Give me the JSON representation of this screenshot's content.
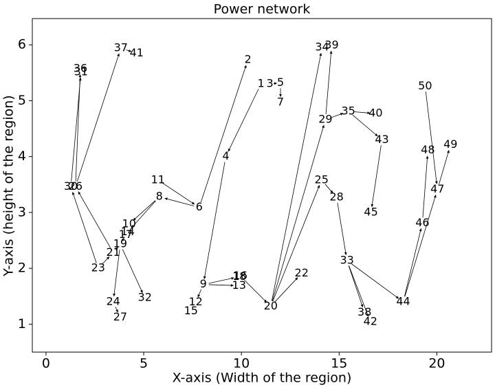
{
  "chart_data": {
    "type": "network",
    "title": "Power network",
    "x_label": "X-axis (Width of the region)",
    "y_label": "Y-axis (height of the region)",
    "xlim": [
      -0.7,
      22.8
    ],
    "ylim": [
      0.5,
      6.47
    ],
    "xticks": [
      0,
      5,
      10,
      15,
      20
    ],
    "yticks": [
      1,
      2,
      3,
      4,
      5,
      6
    ],
    "nodes": [
      {
        "label": "1",
        "x": 11.0,
        "y": 5.3
      },
      {
        "label": "2",
        "x": 10.33,
        "y": 5.73
      },
      {
        "label": "3",
        "x": 11.46,
        "y": 5.3
      },
      {
        "label": "4",
        "x": 9.2,
        "y": 4.0
      },
      {
        "label": "5",
        "x": 12.0,
        "y": 5.32
      },
      {
        "label": "6",
        "x": 7.84,
        "y": 3.09
      },
      {
        "label": "7",
        "x": 12.0,
        "y": 4.97
      },
      {
        "label": "8",
        "x": 5.8,
        "y": 3.28
      },
      {
        "label": "9",
        "x": 8.05,
        "y": 1.71
      },
      {
        "label": "10",
        "x": 4.25,
        "y": 2.79
      },
      {
        "label": "11",
        "x": 5.73,
        "y": 3.58
      },
      {
        "label": "12",
        "x": 7.66,
        "y": 1.39
      },
      {
        "label": "13",
        "x": 9.88,
        "y": 1.69
      },
      {
        "label": "14",
        "x": 4.18,
        "y": 2.65
      },
      {
        "label": "15",
        "x": 7.42,
        "y": 1.23
      },
      {
        "label": "16",
        "x": 9.95,
        "y": 1.86
      },
      {
        "label": "17",
        "x": 4.08,
        "y": 2.6
      },
      {
        "label": "18",
        "x": 9.9,
        "y": 1.85
      },
      {
        "label": "19",
        "x": 3.8,
        "y": 2.43
      },
      {
        "label": "20",
        "x": 11.5,
        "y": 1.32
      },
      {
        "label": "21",
        "x": 3.44,
        "y": 2.28
      },
      {
        "label": "22",
        "x": 13.08,
        "y": 1.91
      },
      {
        "label": "23",
        "x": 2.67,
        "y": 2.0
      },
      {
        "label": "24",
        "x": 3.44,
        "y": 1.4
      },
      {
        "label": "25",
        "x": 14.1,
        "y": 3.58
      },
      {
        "label": "26",
        "x": 1.51,
        "y": 3.46
      },
      {
        "label": "27",
        "x": 3.8,
        "y": 1.12
      },
      {
        "label": "28",
        "x": 14.87,
        "y": 3.27
      },
      {
        "label": "29",
        "x": 14.3,
        "y": 4.66
      },
      {
        "label": "30",
        "x": 1.27,
        "y": 3.46
      },
      {
        "label": "31",
        "x": 1.79,
        "y": 5.51
      },
      {
        "label": "32",
        "x": 5.06,
        "y": 1.47
      },
      {
        "label": "33",
        "x": 15.4,
        "y": 2.14
      },
      {
        "label": "34",
        "x": 14.13,
        "y": 5.95
      },
      {
        "label": "35",
        "x": 15.47,
        "y": 4.81
      },
      {
        "label": "36",
        "x": 1.76,
        "y": 5.57
      },
      {
        "label": "37",
        "x": 3.83,
        "y": 5.94
      },
      {
        "label": "38",
        "x": 16.3,
        "y": 1.21
      },
      {
        "label": "39",
        "x": 14.62,
        "y": 5.99
      },
      {
        "label": "40",
        "x": 16.87,
        "y": 4.77
      },
      {
        "label": "41",
        "x": 4.64,
        "y": 5.85
      },
      {
        "label": "42",
        "x": 16.6,
        "y": 1.04
      },
      {
        "label": "43",
        "x": 17.19,
        "y": 4.3
      },
      {
        "label": "44",
        "x": 18.28,
        "y": 1.4
      },
      {
        "label": "45",
        "x": 16.63,
        "y": 3.0
      },
      {
        "label": "46",
        "x": 19.26,
        "y": 2.81
      },
      {
        "label": "47",
        "x": 20.03,
        "y": 3.41
      },
      {
        "label": "48",
        "x": 19.54,
        "y": 4.11
      },
      {
        "label": "49",
        "x": 20.7,
        "y": 4.21
      },
      {
        "label": "50",
        "x": 19.4,
        "y": 5.26
      }
    ],
    "edges": [
      [
        "37",
        "41"
      ],
      [
        "26",
        "37"
      ],
      [
        "30",
        "31"
      ],
      [
        "26",
        "36"
      ],
      [
        "23",
        "30"
      ],
      [
        "21",
        "26"
      ],
      [
        "23",
        "21"
      ],
      [
        "21",
        "19"
      ],
      [
        "19",
        "17"
      ],
      [
        "8",
        "10"
      ],
      [
        "8",
        "14"
      ],
      [
        "6",
        "8"
      ],
      [
        "11",
        "6"
      ],
      [
        "6",
        "2"
      ],
      [
        "1",
        "4"
      ],
      [
        "4",
        "9"
      ],
      [
        "9",
        "12"
      ],
      [
        "9",
        "18"
      ],
      [
        "9",
        "13"
      ],
      [
        "16",
        "20"
      ],
      [
        "20",
        "22"
      ],
      [
        "20",
        "25"
      ],
      [
        "20",
        "29"
      ],
      [
        "20",
        "34"
      ],
      [
        "29",
        "39"
      ],
      [
        "29",
        "35"
      ],
      [
        "35",
        "40"
      ],
      [
        "35",
        "43"
      ],
      [
        "43",
        "45"
      ],
      [
        "25",
        "28"
      ],
      [
        "28",
        "33"
      ],
      [
        "33",
        "38"
      ],
      [
        "33",
        "42"
      ],
      [
        "33",
        "44"
      ],
      [
        "44",
        "46"
      ],
      [
        "44",
        "47"
      ],
      [
        "46",
        "48"
      ],
      [
        "47",
        "49"
      ],
      [
        "50",
        "47"
      ],
      [
        "3",
        "5"
      ],
      [
        "5",
        "7"
      ],
      [
        "19",
        "24"
      ],
      [
        "24",
        "27"
      ],
      [
        "19",
        "32"
      ]
    ]
  }
}
